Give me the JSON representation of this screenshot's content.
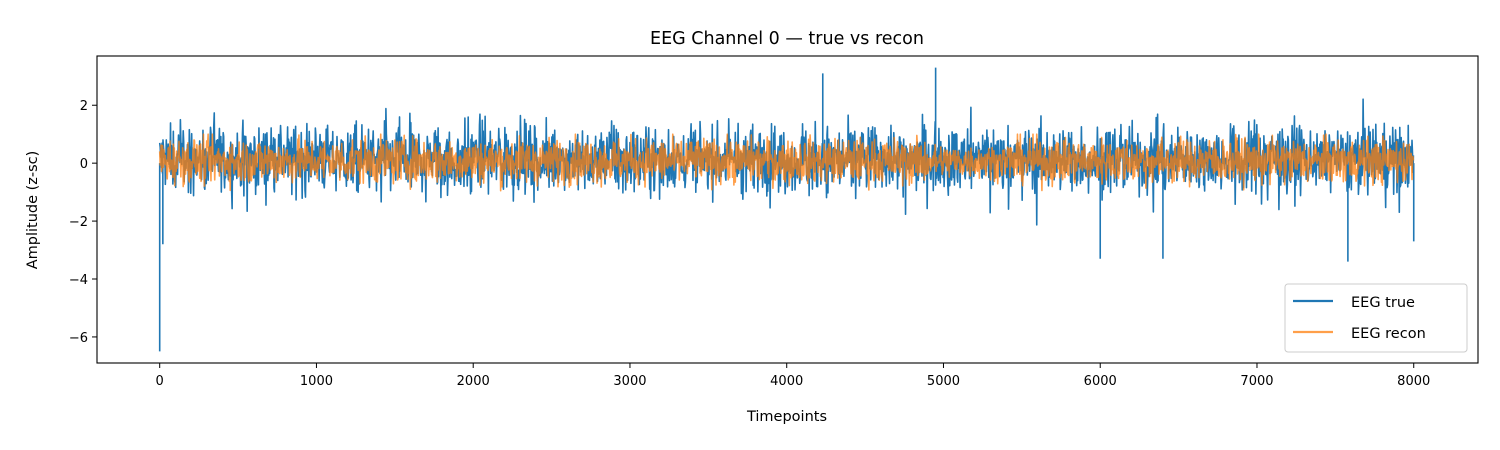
{
  "chart_data": {
    "type": "line",
    "title": "EEG Channel 0 — true vs recon",
    "xlabel": "Timepoints",
    "ylabel": "Amplitude (z-sc)",
    "xlim": [
      -400,
      8410
    ],
    "ylim": [
      -6.9,
      3.7
    ],
    "xticks": [
      0,
      1000,
      2000,
      3000,
      4000,
      5000,
      6000,
      7000,
      8000
    ],
    "xtick_labels": [
      "0",
      "1000",
      "2000",
      "3000",
      "4000",
      "5000",
      "6000",
      "7000",
      "8000"
    ],
    "yticks": [
      2,
      0,
      -2,
      -4,
      -6
    ],
    "ytick_labels": [
      "2",
      "0",
      "−2",
      "−4",
      "−6"
    ],
    "grid": false,
    "legend_position": "lower-right",
    "n_points": 8000,
    "series": [
      {
        "name": "EEG true",
        "color": "#1f77b4",
        "typical_range": [
          -1.4,
          1.9
        ],
        "notable_points": [
          {
            "x": 0,
            "y": -6.5
          },
          {
            "x": 20,
            "y": -2.8
          },
          {
            "x": 4230,
            "y": 3.1
          },
          {
            "x": 4950,
            "y": 3.3
          },
          {
            "x": 6000,
            "y": -3.3
          },
          {
            "x": 6400,
            "y": -3.3
          },
          {
            "x": 7580,
            "y": -3.4
          },
          {
            "x": 8000,
            "y": -2.7
          }
        ]
      },
      {
        "name": "EEG recon",
        "color": "#ff7f0e",
        "typical_range": [
          -0.95,
          1.0
        ]
      }
    ]
  },
  "legend": {
    "items": [
      {
        "label": "EEG true",
        "color": "#1f77b4"
      },
      {
        "label": "EEG recon",
        "color": "#ff7f0e"
      }
    ]
  }
}
